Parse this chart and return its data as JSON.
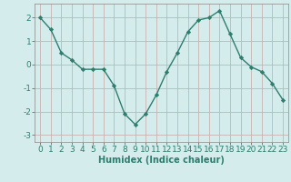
{
  "x": [
    0,
    1,
    2,
    3,
    4,
    5,
    6,
    7,
    8,
    9,
    10,
    11,
    12,
    13,
    14,
    15,
    16,
    17,
    18,
    19,
    20,
    21,
    22,
    23
  ],
  "y": [
    2.0,
    1.5,
    0.5,
    0.2,
    -0.2,
    -0.2,
    -0.2,
    -0.9,
    -2.1,
    -2.55,
    -2.1,
    -1.3,
    -0.3,
    0.5,
    1.4,
    1.9,
    2.0,
    2.3,
    1.3,
    0.3,
    -0.1,
    -0.3,
    -0.8,
    -1.5
  ],
  "line_color": "#2e7d6e",
  "marker": "D",
  "markersize": 2.2,
  "linewidth": 1.0,
  "xlabel": "Humidex (Indice chaleur)",
  "xlabel_fontsize": 7,
  "background_color": "#d4edec",
  "grid_color": "#c8a8a8",
  "ylim": [
    -3.3,
    2.6
  ],
  "xlim": [
    -0.5,
    23.5
  ],
  "yticks": [
    -3,
    -2,
    -1,
    0,
    1,
    2
  ],
  "xticks": [
    0,
    1,
    2,
    3,
    4,
    5,
    6,
    7,
    8,
    9,
    10,
    11,
    12,
    13,
    14,
    15,
    16,
    17,
    18,
    19,
    20,
    21,
    22,
    23
  ],
  "tick_fontsize": 6.5
}
